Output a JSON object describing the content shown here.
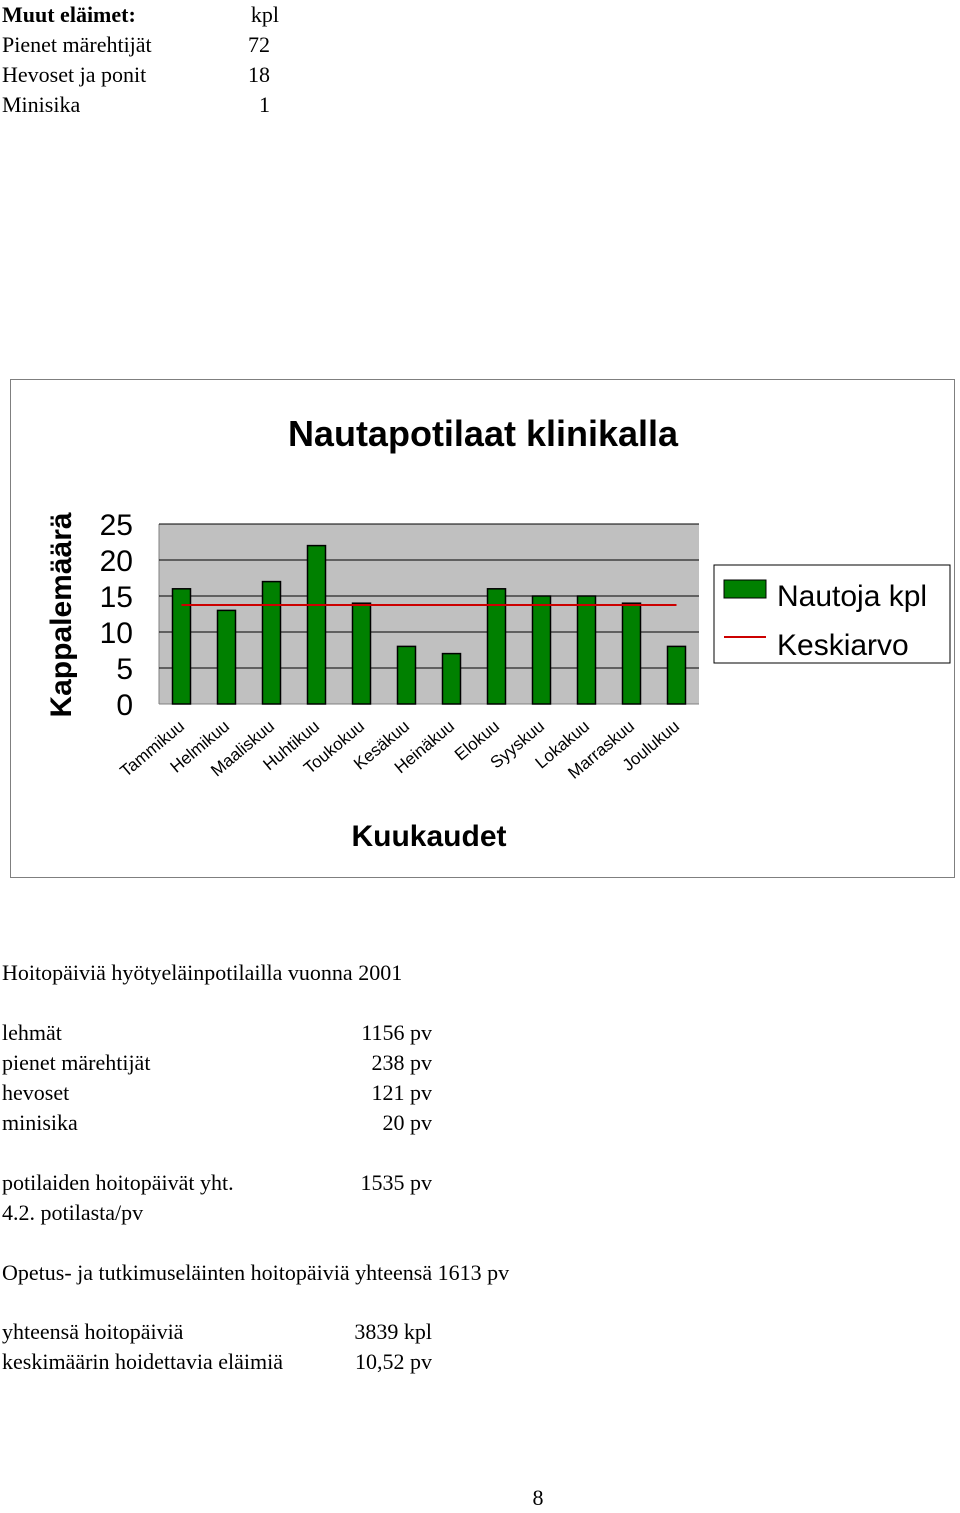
{
  "other_animals": {
    "header": "Muut eläimet:",
    "unit": "kpl",
    "rows": [
      {
        "label": "Pienet märehtijät",
        "value": "72"
      },
      {
        "label": "Hevoset ja ponit",
        "value": "18"
      },
      {
        "label": "Minisika",
        "value": "1"
      }
    ]
  },
  "chart_data": {
    "type": "bar",
    "title": "Nautapotilaat klinikalla",
    "xlabel": "Kuukaudet",
    "ylabel": "Kappalemäärä",
    "categories": [
      "Tammikuu",
      "Helmikuu",
      "Maaliskuu",
      "Huhtikuu",
      "Toukokuu",
      "Kesäkuu",
      "Heinäkuu",
      "Elokuu",
      "Syyskuu",
      "Lokakuu",
      "Marraskuu",
      "Joulukuu"
    ],
    "series": [
      {
        "name": "Nautoja kpl",
        "type": "bar",
        "color": "#008000",
        "values": [
          16,
          13,
          17,
          22,
          14,
          8,
          7,
          16,
          15,
          15,
          14,
          8
        ]
      },
      {
        "name": "Keskiarvo",
        "type": "line",
        "color": "#cc0000",
        "values": [
          13.75,
          13.75,
          13.75,
          13.75,
          13.75,
          13.75,
          13.75,
          13.75,
          13.75,
          13.75,
          13.75,
          13.75
        ]
      }
    ],
    "yticks": [
      "0",
      "5",
      "10",
      "15",
      "20",
      "25"
    ],
    "ylim": [
      0,
      25
    ],
    "grid": true,
    "plot_background": "#c0c0c0",
    "legend_position": "right"
  },
  "care_days": {
    "title": "Hoitopäiviä hyötyeläinpotilailla vuonna 2001",
    "rows": [
      {
        "label": "lehmät",
        "value": "1156 pv"
      },
      {
        "label": "pienet märehtijät",
        "value": "238 pv"
      },
      {
        "label": "hevoset",
        "value": "121 pv"
      },
      {
        "label": "minisika",
        "value": "20 pv"
      }
    ],
    "total_label": "potilaiden hoitopäivät yht.",
    "total_value": "1535 pv",
    "per_patient": "4.2. potilasta/pv"
  },
  "teaching_animals": "Opetus- ja tutkimuseläinten hoitopäiviä yhteensä 1613 pv",
  "totals": [
    {
      "label": "yhteensä hoitopäiviä",
      "value": "3839 kpl"
    },
    {
      "label": "keskimäärin hoidettavia eläimiä",
      "value": "10,52 pv"
    }
  ],
  "page_number": "8"
}
